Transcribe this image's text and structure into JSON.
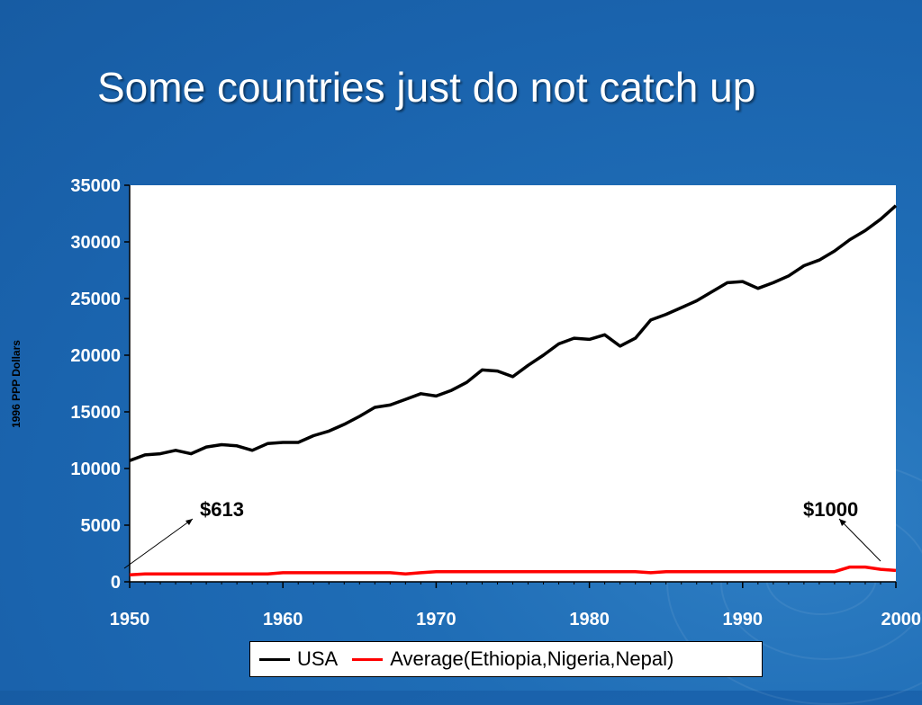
{
  "slide": {
    "title": "Some countries just do not catch up"
  },
  "chart_data": {
    "type": "line",
    "ylabel": "1996 PPP Dollars",
    "xlim": [
      1950,
      2000
    ],
    "ylim": [
      0,
      35000
    ],
    "x_ticks": [
      "1950",
      "1960",
      "1970",
      "1980",
      "1990",
      "2000"
    ],
    "y_ticks": [
      "0",
      "5000",
      "10000",
      "15000",
      "20000",
      "25000",
      "30000",
      "35000"
    ],
    "grid": false,
    "legend": "bottom",
    "x": [
      1950,
      1951,
      1952,
      1953,
      1954,
      1955,
      1956,
      1957,
      1958,
      1959,
      1960,
      1961,
      1962,
      1963,
      1964,
      1965,
      1966,
      1967,
      1968,
      1969,
      1970,
      1971,
      1972,
      1973,
      1974,
      1975,
      1976,
      1977,
      1978,
      1979,
      1980,
      1981,
      1982,
      1983,
      1984,
      1985,
      1986,
      1987,
      1988,
      1989,
      1990,
      1991,
      1992,
      1993,
      1994,
      1995,
      1996,
      1997,
      1998,
      1999,
      2000
    ],
    "series": [
      {
        "name": "USA",
        "color": "#000000",
        "values": [
          10700,
          11200,
          11300,
          11600,
          11300,
          11900,
          12100,
          12000,
          11600,
          12200,
          12300,
          12300,
          12900,
          13300,
          13900,
          14600,
          15400,
          15600,
          16100,
          16600,
          16400,
          16900,
          17600,
          18700,
          18600,
          18100,
          19100,
          20000,
          21000,
          21500,
          21400,
          21800,
          20800,
          21500,
          23100,
          23600,
          24200,
          24800,
          25600,
          26400,
          26500,
          25900,
          26400,
          27000,
          27900,
          28400,
          29200,
          30200,
          31000,
          32000,
          33200
        ]
      },
      {
        "name": "Average(Ethiopia,Nigeria,Nepal)",
        "color": "#ff0000",
        "values": [
          613,
          700,
          700,
          700,
          700,
          700,
          700,
          700,
          700,
          700,
          800,
          800,
          800,
          800,
          800,
          800,
          800,
          800,
          700,
          800,
          900,
          900,
          900,
          900,
          900,
          900,
          900,
          900,
          900,
          900,
          900,
          900,
          900,
          900,
          800,
          900,
          900,
          900,
          900,
          900,
          900,
          900,
          900,
          900,
          900,
          900,
          900,
          1300,
          1300,
          1100,
          1000
        ]
      }
    ],
    "annotations": [
      {
        "text": "$613",
        "year": 1950
      },
      {
        "text": "$1000",
        "year": 2000
      }
    ]
  }
}
